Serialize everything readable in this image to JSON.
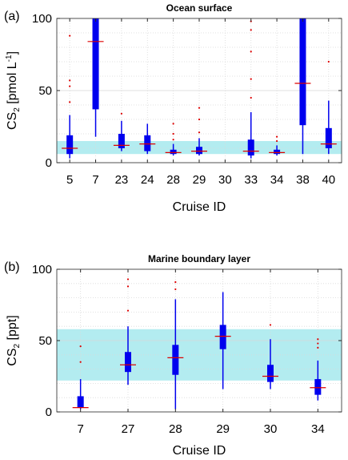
{
  "chart_data": [
    {
      "type": "box",
      "panel_label": "(a)",
      "title": "Ocean surface",
      "xlabel": "Cruise ID",
      "ylabel_main": "CS",
      "ylabel_sub": "2",
      "ylabel_unit": " [pmol L",
      "ylabel_sup": "-1",
      "ylabel_end": "]",
      "ylim": [
        0,
        100
      ],
      "yticks": [
        0,
        50,
        100
      ],
      "grid": true,
      "shaded_band": [
        6,
        15
      ],
      "band_color": "#b3ecf0",
      "box_color": "#0000ee",
      "median_color": "#dd0000",
      "categories": [
        "5",
        "7",
        "23",
        "24",
        "28",
        "29",
        "30",
        "33",
        "34",
        "38",
        "40"
      ],
      "boxes": [
        {
          "label": "5",
          "q1": 6,
          "median": 10,
          "q3": 19,
          "wlo": 3,
          "whi": 33,
          "outliers": [
            42,
            53,
            57,
            88
          ]
        },
        {
          "label": "7",
          "q1": 37,
          "median": 84,
          "q3": 100,
          "wlo": 18,
          "whi": 100,
          "outliers": []
        },
        {
          "label": "23",
          "q1": 10,
          "median": 12,
          "q3": 20,
          "wlo": 8,
          "whi": 29,
          "outliers": [
            34
          ]
        },
        {
          "label": "24",
          "q1": 8,
          "median": 13,
          "q3": 19,
          "wlo": 6,
          "whi": 27,
          "outliers": []
        },
        {
          "label": "28",
          "q1": 6,
          "median": 7,
          "q3": 9,
          "wlo": 5,
          "whi": 13,
          "outliers": [
            16,
            20,
            27
          ]
        },
        {
          "label": "29",
          "q1": 6,
          "median": 8,
          "q3": 11,
          "wlo": 5,
          "whi": 17,
          "outliers": [
            21,
            30,
            38
          ]
        },
        {
          "label": "30"
        },
        {
          "label": "33",
          "q1": 5,
          "median": 8,
          "q3": 16,
          "wlo": 3,
          "whi": 35,
          "outliers": [
            45,
            58,
            77,
            92,
            98
          ]
        },
        {
          "label": "34",
          "q1": 6,
          "median": 7,
          "q3": 9,
          "wlo": 5,
          "whi": 12,
          "outliers": [
            15,
            18
          ]
        },
        {
          "label": "38",
          "q1": 26,
          "median": 55,
          "q3": 100,
          "wlo": 6,
          "whi": 100,
          "outliers": []
        },
        {
          "label": "40",
          "q1": 10,
          "median": 13,
          "q3": 24,
          "wlo": 6,
          "whi": 43,
          "outliers": [
            70
          ]
        }
      ]
    },
    {
      "type": "box",
      "panel_label": "(b)",
      "title": "Marine boundary layer",
      "xlabel": "Cruise ID",
      "ylabel_main": "CS",
      "ylabel_sub": "2",
      "ylabel_unit": " [ppt]",
      "ylabel_sup": "",
      "ylabel_end": "",
      "ylim": [
        0,
        100
      ],
      "yticks": [
        0,
        50,
        100
      ],
      "grid": true,
      "shaded_band": [
        22,
        58
      ],
      "band_color": "#b3ecf0",
      "box_color": "#0000ee",
      "median_color": "#dd0000",
      "categories": [
        "7",
        "27",
        "28",
        "29",
        "30",
        "34"
      ],
      "boxes": [
        {
          "label": "7",
          "q1": 3,
          "median": 3,
          "q3": 11,
          "wlo": 2,
          "whi": 23,
          "outliers": [
            35,
            46
          ]
        },
        {
          "label": "27",
          "q1": 28,
          "median": 33,
          "q3": 42,
          "wlo": 19,
          "whi": 60,
          "outliers": [
            71,
            88,
            93
          ]
        },
        {
          "label": "28",
          "q1": 26,
          "median": 38,
          "q3": 47,
          "wlo": 2,
          "whi": 79,
          "outliers": [
            86,
            91
          ]
        },
        {
          "label": "29",
          "q1": 44,
          "median": 53,
          "q3": 61,
          "wlo": 16,
          "whi": 84,
          "outliers": []
        },
        {
          "label": "30",
          "q1": 21,
          "median": 25,
          "q3": 33,
          "wlo": 16,
          "whi": 51,
          "outliers": [
            61
          ]
        },
        {
          "label": "34",
          "q1": 12,
          "median": 17,
          "q3": 23,
          "wlo": 8,
          "whi": 36,
          "outliers": [
            45,
            48,
            51
          ]
        }
      ]
    }
  ]
}
